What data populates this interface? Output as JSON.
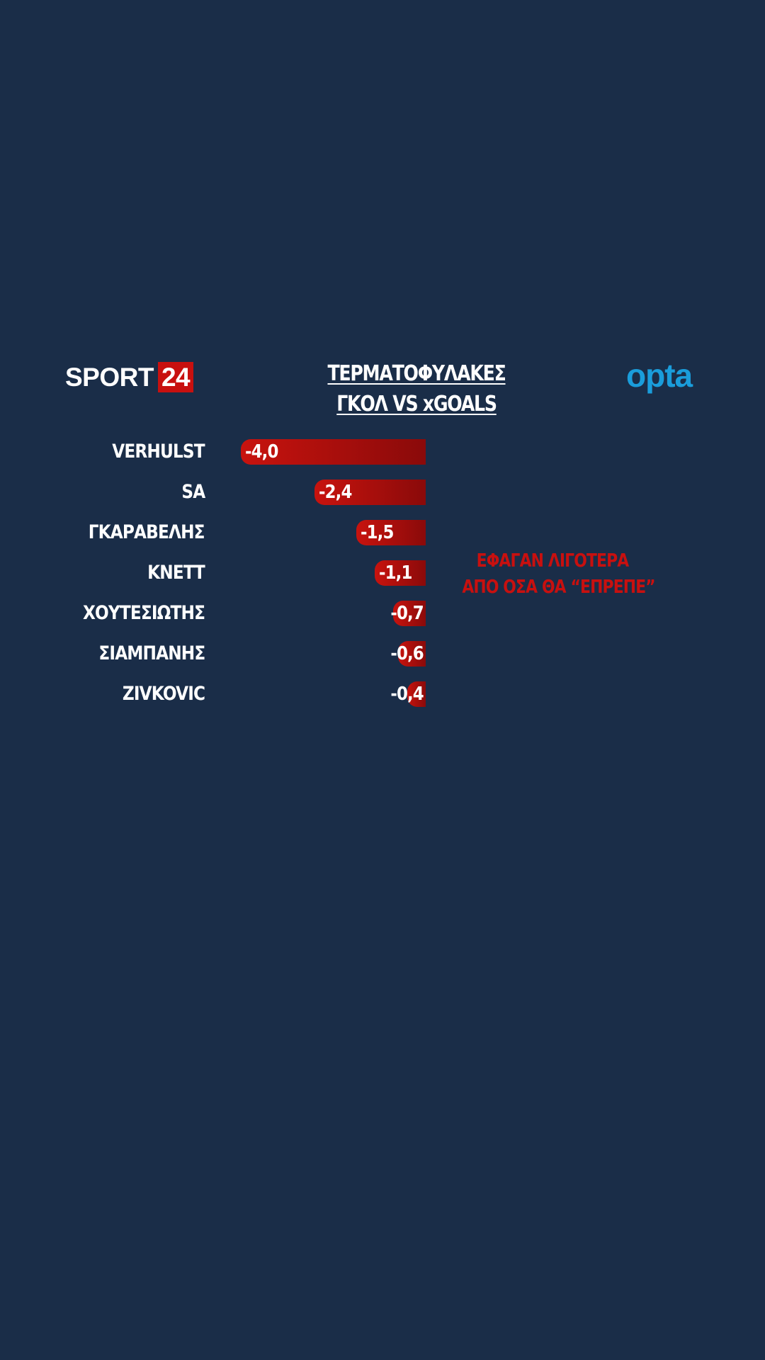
{
  "branding": {
    "sport_word": "SPORT",
    "sport_number": "24",
    "opta": "opta"
  },
  "colors": {
    "background": "#1a2d48",
    "bar_start": "#c8130e",
    "bar_end": "#8a0a0a",
    "brand_red": "#c8100f",
    "opta_blue": "#1a9ddb"
  },
  "chart_data": {
    "type": "bar",
    "orientation": "horizontal",
    "title_lines": [
      "ΤΕΡΜΑΤΟΦΥΛΑΚΕΣ",
      "ΓΚΟΛ VS xGOALS"
    ],
    "categories": [
      "VERHULST",
      "SA",
      "ΓΚΑΡΑΒΕΛΗΣ",
      "ΚΝΕΤΤ",
      "ΧΟΥΤΕΣΙΩΤΗΣ",
      "ΣΙΑΜΠΑΝΗΣ",
      "ZIVKOVIC"
    ],
    "values": [
      -4.0,
      -2.4,
      -1.5,
      -1.1,
      -0.7,
      -0.6,
      -0.4
    ],
    "value_labels": [
      "-4,0",
      "-2,4",
      "-1,5",
      "-1,1",
      "-0,7",
      "-0,6",
      "-0,4"
    ],
    "xlim": [
      -4.0,
      0
    ],
    "annotation": [
      "ΕΦΑΓΑΝ ΛΙΓΟΤΕΡΑ",
      "ΑΠΟ ΟΣΑ ΘΑ “ΕΠΡΕΠΕ”"
    ],
    "grid": false
  }
}
